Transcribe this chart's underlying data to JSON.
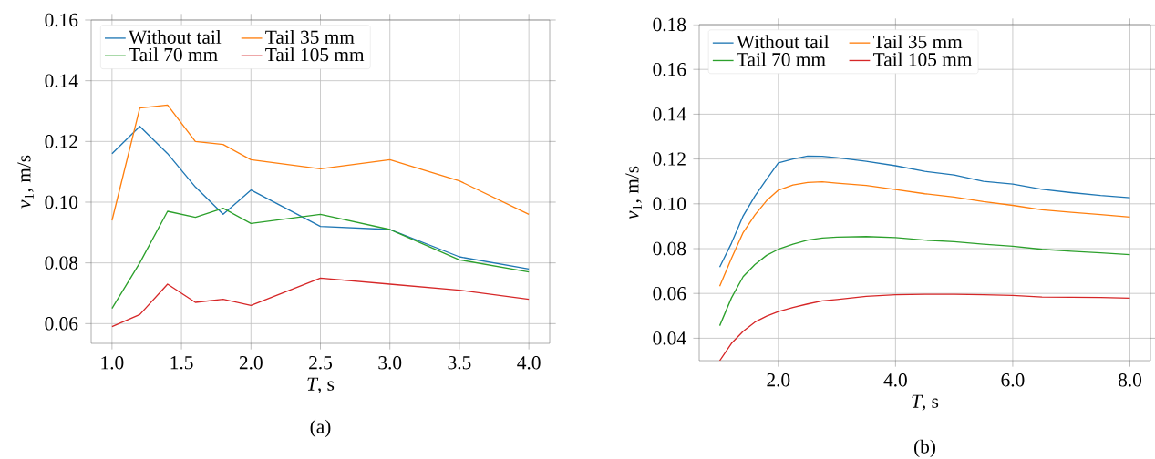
{
  "chart_data": [
    {
      "type": "line",
      "xlabel": "*T*, s",
      "ylabel": "*v*$_{1}$, m/s",
      "annotations": [
        "(a)"
      ],
      "grid": true,
      "legend": "top left",
      "marker": "none",
      "line_style": "solid",
      "x": [
        1.0,
        1.2,
        1.4,
        1.6,
        1.8,
        2.0,
        2.5,
        3.0,
        3.5,
        4.0
      ],
      "xlim": [
        0.85,
        4.15
      ],
      "ylim": [
        0.0535,
        0.16
      ],
      "xticks": [
        {
          "value": 1.0,
          "label": "1.0"
        },
        {
          "value": 1.5,
          "label": "1.5"
        },
        {
          "value": 2.0,
          "label": "2.0"
        },
        {
          "value": 2.5,
          "label": "2.5"
        },
        {
          "value": 3.0,
          "label": "3.0"
        },
        {
          "value": 3.5,
          "label": "3.5"
        },
        {
          "value": 4.0,
          "label": "4.0"
        }
      ],
      "yticks": [
        {
          "value": 0.06,
          "label": "0.06"
        },
        {
          "value": 0.08,
          "label": "0.08"
        },
        {
          "value": 0.1,
          "label": "0.10"
        },
        {
          "value": 0.12,
          "label": "0.12"
        },
        {
          "value": 0.14,
          "label": "0.14"
        },
        {
          "value": 0.16,
          "label": "0.16"
        }
      ],
      "series": [
        {
          "name": "Without tail",
          "color": "#1f77b4",
          "values": [
            0.116,
            0.125,
            0.116,
            0.105,
            0.096,
            0.104,
            0.092,
            0.091,
            0.082,
            0.078
          ]
        },
        {
          "name": "Tail 35 mm",
          "color": "#ff7f0e",
          "values": [
            0.094,
            0.131,
            0.132,
            0.12,
            0.119,
            0.114,
            0.111,
            0.114,
            0.107,
            0.096
          ]
        },
        {
          "name": "Tail 70 mm",
          "color": "#2ca02c",
          "values": [
            0.065,
            0.08,
            0.097,
            0.095,
            0.098,
            0.093,
            0.096,
            0.091,
            0.081,
            0.077
          ]
        },
        {
          "name": "Tail 105 mm",
          "color": "#d62728",
          "values": [
            0.059,
            0.063,
            0.073,
            0.067,
            0.068,
            0.066,
            0.075,
            0.073,
            0.071,
            0.068
          ]
        }
      ]
    },
    {
      "type": "line",
      "xlabel": "*T*, s",
      "ylabel": "*v*$_{1}$, m/s",
      "annotations": [
        "(b)"
      ],
      "grid": true,
      "legend": "top left",
      "marker": "none",
      "line_style": "solid",
      "x": [
        1.0,
        1.2,
        1.4,
        1.6,
        1.8,
        2.0,
        2.25,
        2.5,
        2.75,
        3.0,
        3.5,
        4.0,
        4.5,
        5.0,
        5.5,
        6.0,
        6.5,
        7.0,
        7.5,
        8.0
      ],
      "xlim": [
        0.65,
        8.35
      ],
      "ylim": [
        0.03,
        0.18
      ],
      "xticks": [
        {
          "value": 2.0,
          "label": "2.0"
        },
        {
          "value": 4.0,
          "label": "4.0"
        },
        {
          "value": 6.0,
          "label": "6.0"
        },
        {
          "value": 8.0,
          "label": "8.0"
        }
      ],
      "yticks": [
        {
          "value": 0.04,
          "label": "0.04"
        },
        {
          "value": 0.06,
          "label": "0.06"
        },
        {
          "value": 0.08,
          "label": "0.08"
        },
        {
          "value": 0.1,
          "label": "0.10"
        },
        {
          "value": 0.12,
          "label": "0.12"
        },
        {
          "value": 0.14,
          "label": "0.14"
        },
        {
          "value": 0.16,
          "label": "0.16"
        },
        {
          "value": 0.18,
          "label": "0.18"
        }
      ],
      "series": [
        {
          "name": "Without tail",
          "color": "#1f77b4",
          "values": [
            0.0718,
            0.0824,
            0.0946,
            0.1034,
            0.1109,
            0.1183,
            0.12,
            0.1213,
            0.1212,
            0.1206,
            0.119,
            0.117,
            0.1145,
            0.1129,
            0.11,
            0.1088,
            0.1065,
            0.105,
            0.1037,
            0.1027
          ]
        },
        {
          "name": "Tail 35 mm",
          "color": "#ff7f0e",
          "values": [
            0.0632,
            0.0756,
            0.0872,
            0.095,
            0.1014,
            0.1061,
            0.1084,
            0.1095,
            0.1098,
            0.1092,
            0.1082,
            0.1064,
            0.1045,
            0.103,
            0.101,
            0.0993,
            0.0973,
            0.0962,
            0.0952,
            0.0941
          ]
        },
        {
          "name": "Tail 70 mm",
          "color": "#2ca02c",
          "values": [
            0.0456,
            0.058,
            0.0675,
            0.0729,
            0.077,
            0.0797,
            0.082,
            0.0838,
            0.0847,
            0.0851,
            0.0854,
            0.0849,
            0.0838,
            0.0831,
            0.082,
            0.0811,
            0.0797,
            0.0788,
            0.0781,
            0.0773
          ]
        },
        {
          "name": "Tail 105 mm",
          "color": "#d62728",
          "values": [
            0.03,
            0.0377,
            0.0431,
            0.0472,
            0.0499,
            0.0519,
            0.0537,
            0.0553,
            0.0567,
            0.0573,
            0.0587,
            0.0594,
            0.0596,
            0.0596,
            0.0594,
            0.0591,
            0.0584,
            0.0583,
            0.0582,
            0.0579
          ]
        }
      ]
    }
  ]
}
